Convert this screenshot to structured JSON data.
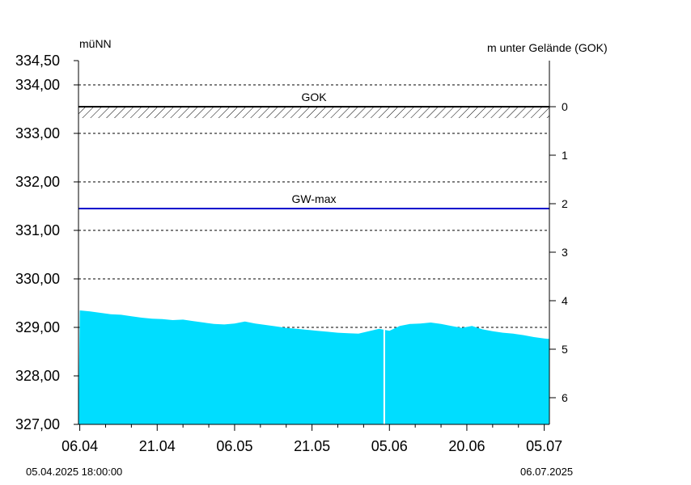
{
  "chart_data": {
    "type": "area",
    "ylabel_left": "müNN",
    "ylabel_right": "m unter Gelände (GOK)",
    "ylim": [
      327.0,
      334.5
    ],
    "yticks_left": [
      "334,50",
      "334,00",
      "333,00",
      "332,00",
      "331,00",
      "330,00",
      "329,00",
      "328,00",
      "327,00"
    ],
    "ytick_values_left": [
      334.5,
      334.0,
      333.0,
      332.0,
      331.0,
      330.0,
      329.0,
      328.0,
      327.0
    ],
    "gok_level": 333.55,
    "yticks_right": [
      "0",
      "1",
      "2",
      "3",
      "4",
      "5",
      "6"
    ],
    "x_range": [
      "2025-04-05 18:00",
      "2025-07-06"
    ],
    "xticks": [
      "06.04",
      "21.04",
      "06.05",
      "21.05",
      "05.06",
      "20.06",
      "05.07"
    ],
    "xtick_dates": [
      "2025-04-06",
      "2025-04-21",
      "2025-05-06",
      "2025-05-21",
      "2025-06-05",
      "2025-06-20",
      "2025-07-05"
    ],
    "grid": "horizontal-dashed",
    "reference_lines": [
      {
        "name": "GOK",
        "value": 333.55,
        "color": "#000000",
        "hatched": true
      },
      {
        "name": "GW-max",
        "value": 331.45,
        "color": "#0000cc"
      }
    ],
    "fill_color": "#00ddff",
    "gap_date": "2025-06-04",
    "series": [
      {
        "x": [
          "2025-04-06",
          "2025-04-08",
          "2025-04-10",
          "2025-04-12",
          "2025-04-14",
          "2025-04-16",
          "2025-04-18",
          "2025-04-20",
          "2025-04-22",
          "2025-04-24",
          "2025-04-26",
          "2025-04-28",
          "2025-04-30",
          "2025-05-02",
          "2025-05-04",
          "2025-05-06",
          "2025-05-08",
          "2025-05-10",
          "2025-05-12",
          "2025-05-14",
          "2025-05-16",
          "2025-05-18",
          "2025-05-20",
          "2025-05-22",
          "2025-05-24",
          "2025-05-26",
          "2025-05-28",
          "2025-05-30",
          "2025-06-01",
          "2025-06-03",
          "2025-06-05",
          "2025-06-07",
          "2025-06-09",
          "2025-06-11",
          "2025-06-13",
          "2025-06-15",
          "2025-06-17",
          "2025-06-19",
          "2025-06-21",
          "2025-06-23",
          "2025-06-25",
          "2025-06-27",
          "2025-06-29",
          "2025-07-01",
          "2025-07-03",
          "2025-07-05",
          "2025-07-06"
        ],
        "values": [
          329.35,
          329.33,
          329.3,
          329.27,
          329.26,
          329.23,
          329.2,
          329.18,
          329.17,
          329.15,
          329.16,
          329.13,
          329.1,
          329.07,
          329.06,
          329.08,
          329.12,
          329.08,
          329.05,
          329.02,
          328.99,
          328.97,
          328.95,
          328.93,
          328.91,
          328.89,
          328.88,
          328.87,
          328.92,
          328.97,
          328.93,
          329.03,
          329.07,
          329.08,
          329.1,
          329.07,
          329.03,
          328.99,
          329.03,
          328.96,
          328.92,
          328.89,
          328.87,
          328.84,
          328.8,
          328.77,
          328.76
        ]
      }
    ]
  },
  "footer": {
    "start_label": "05.04.2025 18:00:00",
    "end_label": "06.07.2025"
  }
}
